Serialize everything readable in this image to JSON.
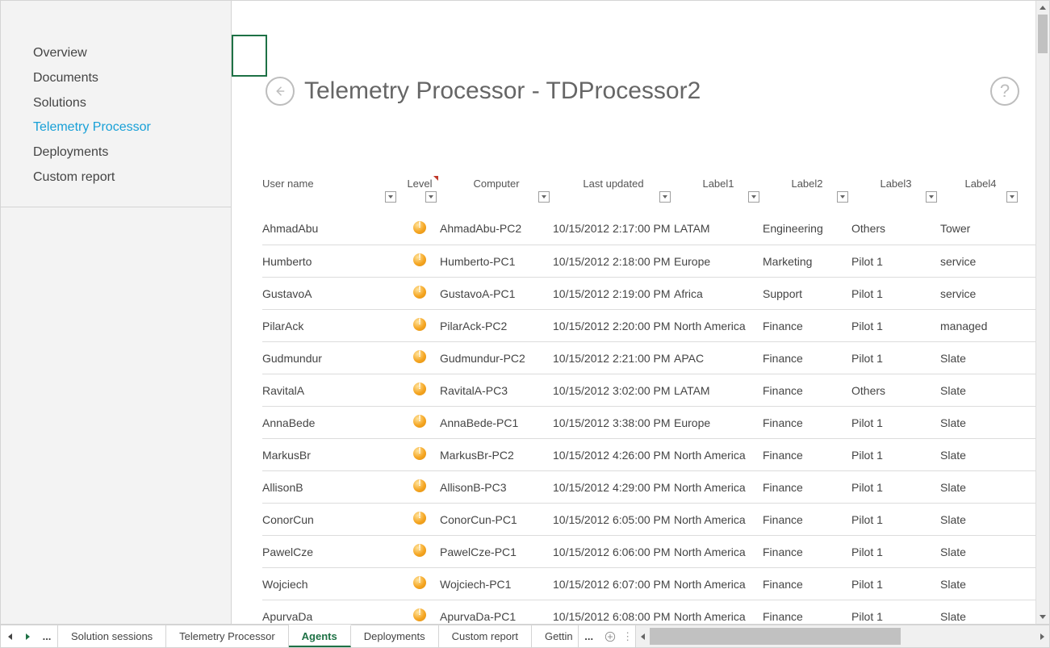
{
  "sidebar": {
    "items": [
      {
        "label": "Overview"
      },
      {
        "label": "Documents"
      },
      {
        "label": "Solutions"
      },
      {
        "label": "Telemetry Processor",
        "active": true
      },
      {
        "label": "Deployments"
      },
      {
        "label": "Custom report"
      }
    ]
  },
  "header": {
    "title": "Telemetry Processor - TDProcessor2"
  },
  "table": {
    "columns": [
      {
        "key": "user",
        "label": "User name",
        "align": "left",
        "width": 170
      },
      {
        "key": "level",
        "label": "Level",
        "align": "center",
        "width": 50,
        "red_mark": true
      },
      {
        "key": "computer",
        "label": "Computer",
        "align": "center",
        "width": 140
      },
      {
        "key": "updated",
        "label": "Last updated",
        "align": "center",
        "width": 150
      },
      {
        "key": "label1",
        "label": "Label1",
        "align": "center",
        "width": 110
      },
      {
        "key": "label2",
        "label": "Label2",
        "align": "center",
        "width": 110
      },
      {
        "key": "label3",
        "label": "Label3",
        "align": "center",
        "width": 110
      },
      {
        "key": "label4",
        "label": "Label4",
        "align": "center",
        "width": 100
      }
    ],
    "level_icon_color": "#f5a623",
    "rows": [
      {
        "user": "AhmadAbu",
        "computer": "AhmadAbu-PC2",
        "updated": "10/15/2012 2:17:00 PM",
        "label1": "LATAM",
        "label2": "Engineering",
        "label3": "Others",
        "label4": "Tower"
      },
      {
        "user": "Humberto",
        "computer": "Humberto-PC1",
        "updated": "10/15/2012 2:18:00 PM",
        "label1": "Europe",
        "label2": "Marketing",
        "label3": "Pilot 1",
        "label4": "service"
      },
      {
        "user": "GustavoA",
        "computer": "GustavoA-PC1",
        "updated": "10/15/2012 2:19:00 PM",
        "label1": "Africa",
        "label2": "Support",
        "label3": "Pilot 1",
        "label4": "service"
      },
      {
        "user": "PilarAck",
        "computer": "PilarAck-PC2",
        "updated": "10/15/2012 2:20:00 PM",
        "label1": "North America",
        "label2": "Finance",
        "label3": "Pilot 1",
        "label4": "managed"
      },
      {
        "user": "Gudmundur",
        "computer": "Gudmundur-PC2",
        "updated": "10/15/2012 2:21:00 PM",
        "label1": "APAC",
        "label2": "Finance",
        "label3": "Pilot 1",
        "label4": "Slate"
      },
      {
        "user": "RavitalA",
        "computer": "RavitalA-PC3",
        "updated": "10/15/2012 3:02:00 PM",
        "label1": "LATAM",
        "label2": "Finance",
        "label3": "Others",
        "label4": "Slate"
      },
      {
        "user": "AnnaBede",
        "computer": "AnnaBede-PC1",
        "updated": "10/15/2012 3:38:00 PM",
        "label1": "Europe",
        "label2": "Finance",
        "label3": "Pilot 1",
        "label4": "Slate"
      },
      {
        "user": "MarkusBr",
        "computer": "MarkusBr-PC2",
        "updated": "10/15/2012 4:26:00 PM",
        "label1": "North America",
        "label2": "Finance",
        "label3": "Pilot 1",
        "label4": "Slate"
      },
      {
        "user": "AllisonB",
        "computer": "AllisonB-PC3",
        "updated": "10/15/2012 4:29:00 PM",
        "label1": "North America",
        "label2": "Finance",
        "label3": "Pilot 1",
        "label4": "Slate"
      },
      {
        "user": "ConorCun",
        "computer": "ConorCun-PC1",
        "updated": "10/15/2012 6:05:00 PM",
        "label1": "North America",
        "label2": "Finance",
        "label3": "Pilot 1",
        "label4": "Slate"
      },
      {
        "user": "PawelCze",
        "computer": "PawelCze-PC1",
        "updated": "10/15/2012 6:06:00 PM",
        "label1": "North America",
        "label2": "Finance",
        "label3": "Pilot 1",
        "label4": "Slate"
      },
      {
        "user": "Wojciech",
        "computer": "Wojciech-PC1",
        "updated": "10/15/2012 6:07:00 PM",
        "label1": "North America",
        "label2": "Finance",
        "label3": "Pilot 1",
        "label4": "Slate"
      },
      {
        "user": "ApurvaDa",
        "computer": "ApurvaDa-PC1",
        "updated": "10/15/2012 6:08:00 PM",
        "label1": "North America",
        "label2": "Finance",
        "label3": "Pilot 1",
        "label4": "Slate"
      }
    ]
  },
  "tabs": {
    "ellipsis": "...",
    "items": [
      {
        "label": "Solution sessions"
      },
      {
        "label": "Telemetry Processor"
      },
      {
        "label": "Agents",
        "active": true
      },
      {
        "label": "Deployments"
      },
      {
        "label": "Custom report"
      },
      {
        "label": "Gettin",
        "overflow": true
      }
    ],
    "overflow_ellipsis": "..."
  },
  "colors": {
    "accent_green": "#1e7145",
    "accent_blue": "#18a0d7",
    "border": "#d4d4d4",
    "sidebar_bg": "#f3f3f3",
    "text": "#444444",
    "scrollbar_thumb": "#c1c1c1",
    "scrollbar_track": "#f0f0f0"
  }
}
